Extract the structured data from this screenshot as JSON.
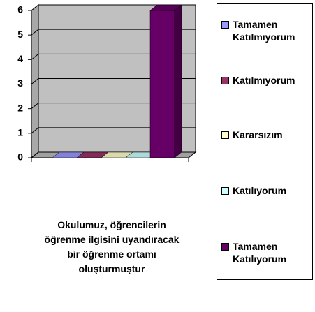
{
  "chart_data": {
    "type": "bar3d",
    "categories": [
      "Okulumuz, öğrencilerin öğrenme ilgisini uyandıracak bir öğrenme ortamı oluşturmuştur"
    ],
    "series": [
      {
        "name": "Tamamen Katılmıyorum",
        "color": "#9999ff",
        "values": [
          0
        ]
      },
      {
        "name": "Katılmıyorum",
        "color": "#993366",
        "values": [
          0
        ]
      },
      {
        "name": "Kararsızım",
        "color": "#ffffcc",
        "values": [
          0
        ]
      },
      {
        "name": "Katılıyorum",
        "color": "#ccffff",
        "values": [
          0
        ]
      },
      {
        "name": "Tamamen Katılıyorum",
        "color": "#660066",
        "values": [
          6
        ]
      }
    ],
    "ylim": [
      0,
      6
    ],
    "yticks": [
      0,
      1,
      2,
      3,
      4,
      5,
      6
    ],
    "grid": true,
    "legend": "right"
  }
}
